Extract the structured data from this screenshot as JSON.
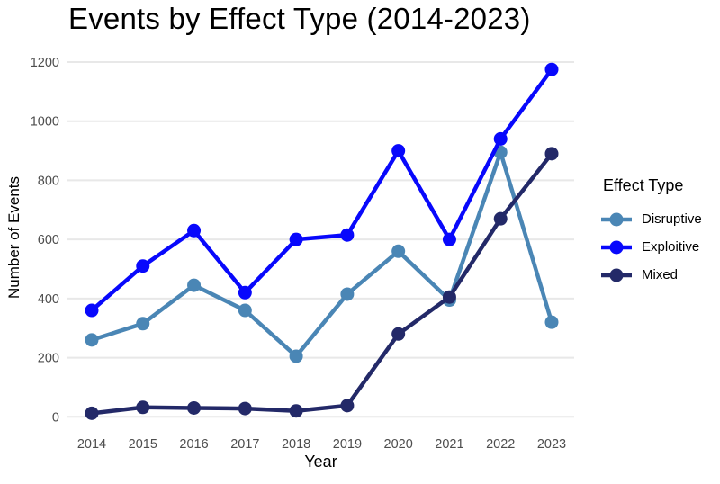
{
  "chart_data": {
    "type": "line",
    "title": "Events by Effect Type (2014-2023)",
    "xlabel": "Year",
    "ylabel": "Number of Events",
    "legend_title": "Effect Type",
    "legend_position": "right",
    "grid": "horizontal-only",
    "categories": [
      "2014",
      "2015",
      "2016",
      "2017",
      "2018",
      "2019",
      "2020",
      "2021",
      "2022",
      "2023"
    ],
    "ylim": [
      0,
      1200
    ],
    "yticks": [
      0,
      200,
      400,
      600,
      800,
      1000,
      1200
    ],
    "series": [
      {
        "name": "Disruptive",
        "color": "#4A86B5",
        "values": [
          260,
          315,
          445,
          360,
          205,
          415,
          560,
          395,
          895,
          320
        ]
      },
      {
        "name": "Exploitive",
        "color": "#0808FC",
        "values": [
          360,
          510,
          630,
          420,
          600,
          615,
          900,
          600,
          940,
          1175
        ]
      },
      {
        "name": "Mixed",
        "color": "#232968",
        "values": [
          12,
          32,
          30,
          28,
          20,
          38,
          280,
          405,
          670,
          890
        ]
      }
    ]
  },
  "colors": {
    "gridline": "#E8E8E8",
    "tick_label": "#4D4D4D",
    "text": "#000000",
    "background": "#FFFFFF"
  }
}
